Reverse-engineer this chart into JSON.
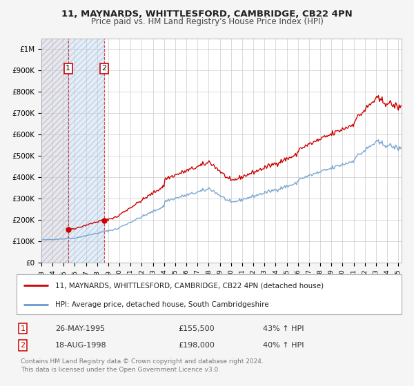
{
  "title_line1": "11, MAYNARDS, WHITTLESFORD, CAMBRIDGE, CB22 4PN",
  "title_line2": "Price paid vs. HM Land Registry's House Price Index (HPI)",
  "ylim": [
    0,
    1050000
  ],
  "yticks": [
    0,
    100000,
    200000,
    300000,
    400000,
    500000,
    600000,
    700000,
    800000,
    900000,
    1000000
  ],
  "ytick_labels": [
    "£0",
    "£100K",
    "£200K",
    "£300K",
    "£400K",
    "£500K",
    "£600K",
    "£700K",
    "£800K",
    "£900K",
    "£1M"
  ],
  "sale1_date": 1995.4,
  "sale1_price": 155500,
  "sale2_date": 1998.63,
  "sale2_price": 198000,
  "sale1_label": "1",
  "sale2_label": "2",
  "sale1_display": "26-MAY-1995",
  "sale1_price_display": "£155,500",
  "sale1_hpi": "43% ↑ HPI",
  "sale2_display": "18-AUG-1998",
  "sale2_price_display": "£198,000",
  "sale2_hpi": "40% ↑ HPI",
  "legend_line1": "11, MAYNARDS, WHITTLESFORD, CAMBRIDGE, CB22 4PN (detached house)",
  "legend_line2": "HPI: Average price, detached house, South Cambridgeshire",
  "footer": "Contains HM Land Registry data © Crown copyright and database right 2024.\nThis data is licensed under the Open Government Licence v3.0.",
  "line_color": "#cc0000",
  "hpi_color": "#6699cc",
  "bg_color": "#f5f5f5",
  "plot_bg": "#ffffff",
  "grid_color": "#cccccc",
  "hatch_left_color": "#c8c8d8",
  "hatch_mid_color": "#c8d8e8",
  "xlim_start": 1993,
  "xlim_end": 2025.3
}
